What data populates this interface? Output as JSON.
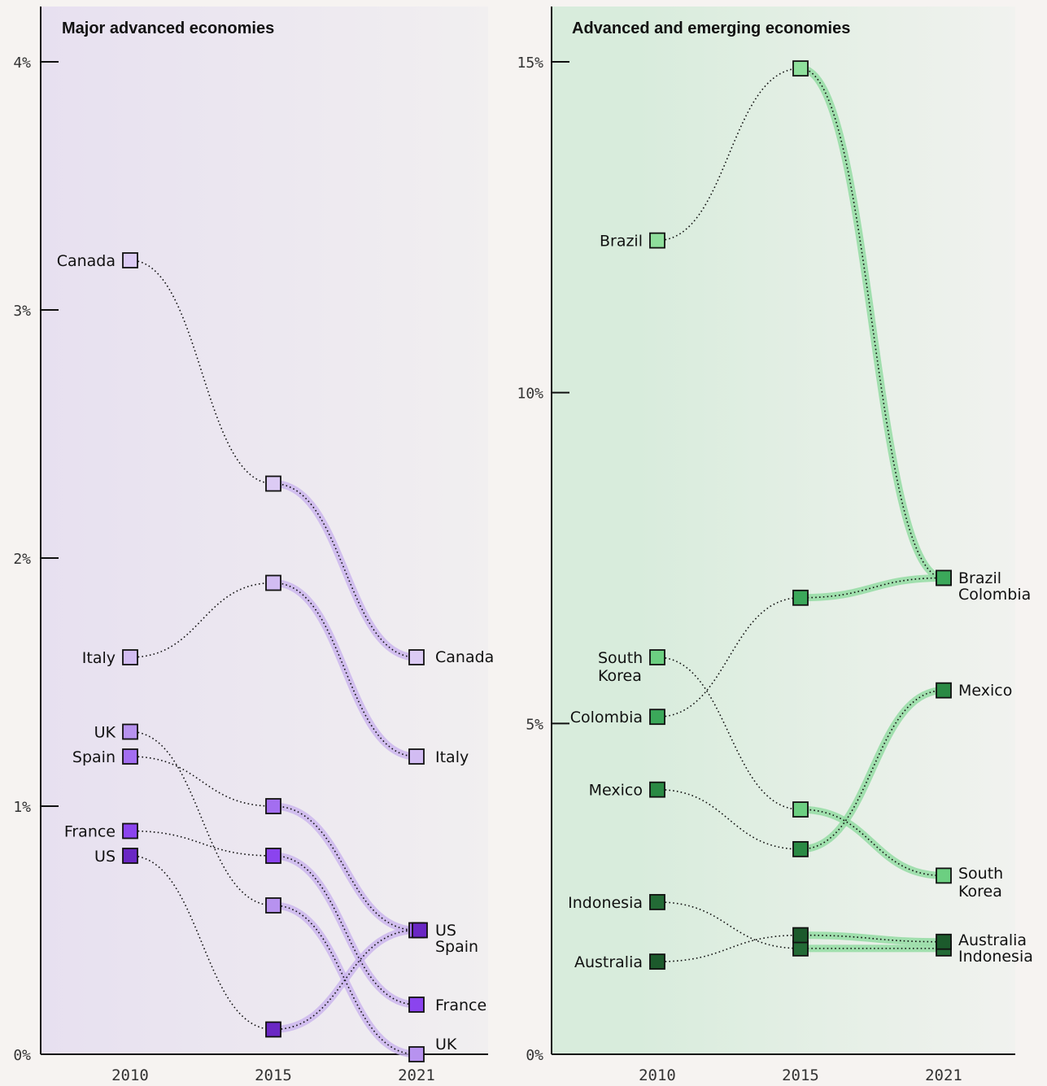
{
  "chart_data": [
    {
      "type": "line",
      "title": "Major advanced economies",
      "x": [
        "2010",
        "2015",
        "2021"
      ],
      "y_ticks": [
        "0%",
        "1%",
        "2%",
        "3%",
        "4%"
      ],
      "ylim": [
        0,
        4
      ],
      "colors": {
        "bg_left": "#e7e0f0",
        "bg_right": "#f1eff0",
        "band": "#c9b3ee",
        "Canada": "#dccbf4",
        "Italy": "#d2bcf2",
        "UK": "#b792ef",
        "Spain": "#a36ef0",
        "France": "#8b44ee",
        "US": "#6a27c4"
      },
      "series": [
        {
          "name": "Canada",
          "values": [
            3.2,
            2.3,
            1.6
          ]
        },
        {
          "name": "Italy",
          "values": [
            1.6,
            1.9,
            1.2
          ]
        },
        {
          "name": "UK",
          "values": [
            1.3,
            0.6,
            0.0
          ]
        },
        {
          "name": "Spain",
          "values": [
            1.2,
            1.0,
            0.5
          ]
        },
        {
          "name": "France",
          "values": [
            0.9,
            0.8,
            0.2
          ]
        },
        {
          "name": "US",
          "values": [
            0.8,
            0.1,
            0.5
          ]
        }
      ],
      "left_labels": [
        "Canada",
        "Italy",
        "UK",
        "Spain",
        "France",
        "US"
      ],
      "right_labels": [
        "Canada",
        "Italy",
        "US",
        "Spain",
        "France",
        "UK"
      ]
    },
    {
      "type": "line",
      "title": "Advanced and emerging economies",
      "x": [
        "2010",
        "2015",
        "2021"
      ],
      "y_ticks": [
        "0%",
        "5%",
        "10%",
        "15%"
      ],
      "ylim": [
        0,
        15
      ],
      "colors": {
        "bg_left": "#d8ecdc",
        "bg_right": "#f1f2ef",
        "band": "#8fdb9f",
        "Brazil": "#8fdf9c",
        "South Korea": "#6ccf81",
        "Colombia": "#3ba85a",
        "Mexico": "#2a8a44",
        "Indonesia": "#236b36",
        "Australia": "#1c5a2c"
      },
      "series": [
        {
          "name": "Brazil",
          "values": [
            12.3,
            14.9,
            7.2
          ]
        },
        {
          "name": "Colombia",
          "values": [
            5.1,
            6.9,
            7.2
          ]
        },
        {
          "name": "South Korea",
          "values": [
            6.0,
            3.7,
            2.7
          ]
        },
        {
          "name": "Mexico",
          "values": [
            4.0,
            3.1,
            5.5
          ]
        },
        {
          "name": "Indonesia",
          "values": [
            2.3,
            1.6,
            1.6
          ]
        },
        {
          "name": "Australia",
          "values": [
            1.4,
            1.8,
            1.7
          ]
        }
      ],
      "left_labels": [
        "Brazil",
        "South\nKorea",
        "Colombia",
        "Mexico",
        "Indonesia",
        "Australia"
      ],
      "right_labels": [
        "Brazil",
        "Colombia",
        "Mexico",
        "South\nKorea",
        "Australia",
        "Indonesia"
      ]
    }
  ]
}
